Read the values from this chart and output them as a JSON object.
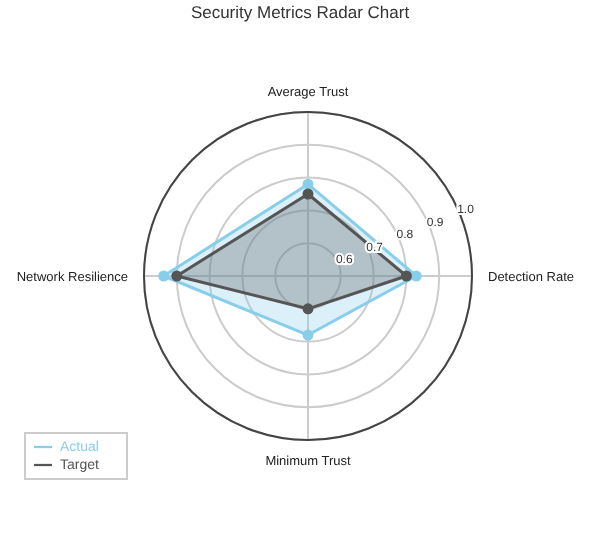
{
  "chart_data": {
    "type": "radar",
    "title": "Security Metrics Radar Chart",
    "categories": [
      "Average Trust",
      "Detection Rate",
      "Minimum Trust",
      "Network Resilience"
    ],
    "series": [
      {
        "name": "Actual",
        "color": "#87ceeb",
        "values": [
          0.78,
          0.83,
          0.68,
          0.94
        ]
      },
      {
        "name": "Target",
        "color": "#555555",
        "values": [
          0.75,
          0.8,
          0.6,
          0.9
        ]
      }
    ],
    "ylim": [
      0.5,
      1.0
    ],
    "yticks": [
      0.6,
      0.7,
      0.8,
      0.9,
      {
        "value": 1.0,
        "label": "1.0"
      }
    ],
    "grid": true,
    "legend": "bottom left",
    "marker": "circle",
    "line_style": "solid"
  }
}
